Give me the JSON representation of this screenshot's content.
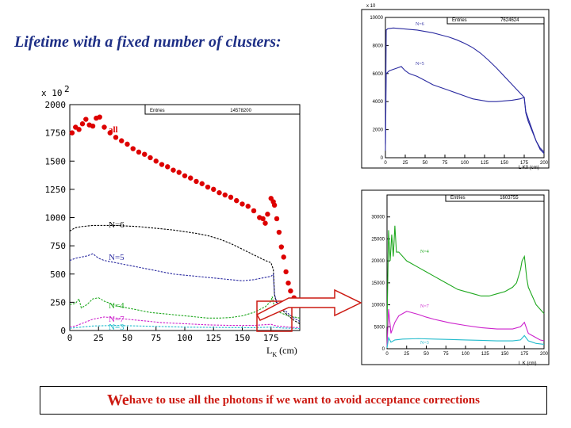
{
  "slide": {
    "title": "Lifetime with a fixed number of clusters:",
    "footer_first_word": "We",
    "footer_rest": " have to use all the photons if we want to avoid acceptance corrections",
    "title_color": "#1e2f86",
    "footer_color": "#cc1a12",
    "arrow_color": "#cc1a12"
  },
  "chart_data": [
    {
      "type": "line",
      "xlabel": "L_K (cm)",
      "xlabel_main": "L",
      "xlabel_sub": "K",
      "xlabel_unit": " (cm)",
      "ylabel": "",
      "y_multiplier": "x 10",
      "y_multiplier_exp": "2",
      "stats_label": "Entries",
      "stats_value": "14578200",
      "xlim": [
        0,
        200
      ],
      "ylim": [
        0,
        2000
      ],
      "xticks": [
        0,
        25,
        50,
        75,
        100,
        125,
        150,
        175
      ],
      "yticks": [
        0,
        250,
        500,
        750,
        1000,
        1250,
        1500,
        1750,
        2000
      ],
      "series": [
        {
          "name": "all",
          "color": "#dd0000",
          "marker": "dot",
          "x": [
            2,
            5,
            8,
            11,
            14,
            17,
            20,
            23,
            26,
            30,
            35,
            40,
            45,
            50,
            55,
            60,
            65,
            70,
            75,
            80,
            85,
            90,
            95,
            100,
            105,
            110,
            115,
            120,
            125,
            130,
            135,
            140,
            145,
            150,
            155,
            160,
            165,
            168,
            170,
            172,
            175,
            177,
            178,
            180,
            182,
            184,
            186,
            188,
            190,
            192,
            195,
            198
          ],
          "values": [
            1750,
            1800,
            1780,
            1830,
            1870,
            1820,
            1810,
            1880,
            1890,
            1800,
            1750,
            1710,
            1680,
            1650,
            1610,
            1580,
            1560,
            1530,
            1500,
            1470,
            1450,
            1420,
            1400,
            1370,
            1350,
            1320,
            1300,
            1270,
            1250,
            1220,
            1200,
            1180,
            1150,
            1120,
            1100,
            1060,
            1000,
            990,
            950,
            1030,
            1170,
            1140,
            1110,
            990,
            870,
            740,
            650,
            520,
            420,
            350,
            290,
            240
          ]
        },
        {
          "name": "N=6",
          "color": "#000000",
          "x": [
            0,
            3,
            5,
            10,
            20,
            30,
            40,
            50,
            60,
            70,
            80,
            90,
            100,
            110,
            120,
            130,
            140,
            150,
            160,
            170,
            175,
            177,
            178,
            180,
            185,
            190,
            195,
            200
          ],
          "values": [
            880,
            900,
            910,
            920,
            930,
            930,
            930,
            925,
            920,
            910,
            900,
            890,
            875,
            860,
            840,
            810,
            770,
            720,
            670,
            620,
            600,
            540,
            320,
            230,
            180,
            130,
            90,
            60
          ]
        },
        {
          "name": "N=5",
          "color": "#2a2aa0",
          "x": [
            0,
            5,
            10,
            15,
            20,
            25,
            30,
            40,
            50,
            60,
            70,
            80,
            90,
            100,
            110,
            120,
            130,
            140,
            150,
            160,
            170,
            175,
            177,
            178,
            180,
            185,
            190,
            195,
            200
          ],
          "values": [
            620,
            640,
            650,
            660,
            680,
            640,
            620,
            600,
            580,
            560,
            540,
            520,
            500,
            490,
            480,
            470,
            460,
            450,
            440,
            450,
            470,
            480,
            500,
            320,
            250,
            200,
            150,
            110,
            80
          ]
        },
        {
          "name": "N=4",
          "color": "#1fa81f",
          "x": [
            0,
            5,
            8,
            10,
            15,
            20,
            25,
            30,
            40,
            50,
            60,
            70,
            80,
            90,
            100,
            110,
            120,
            130,
            140,
            150,
            160,
            170,
            175,
            176,
            178,
            180,
            185,
            190,
            200
          ],
          "values": [
            230,
            240,
            280,
            200,
            230,
            280,
            290,
            260,
            220,
            200,
            180,
            160,
            150,
            140,
            130,
            120,
            110,
            110,
            115,
            130,
            160,
            210,
            260,
            300,
            200,
            170,
            150,
            130,
            110
          ]
        },
        {
          "name": "N=7",
          "color": "#cc22cc",
          "x": [
            0,
            5,
            10,
            20,
            30,
            40,
            50,
            60,
            70,
            80,
            100,
            120,
            140,
            160,
            175,
            180,
            190,
            200
          ],
          "values": [
            30,
            40,
            60,
            100,
            120,
            110,
            100,
            90,
            80,
            70,
            60,
            50,
            45,
            45,
            55,
            40,
            30,
            25
          ]
        },
        {
          "name": "N=3",
          "color": "#22bbcc",
          "x": [
            0,
            10,
            20,
            40,
            60,
            80,
            100,
            120,
            140,
            160,
            175,
            185,
            200
          ],
          "values": [
            20,
            30,
            40,
            45,
            40,
            35,
            30,
            28,
            26,
            25,
            30,
            22,
            18
          ]
        }
      ]
    },
    {
      "type": "line",
      "y_multiplier": "x 10",
      "stats_label": "Entries",
      "stats_value": "7624624",
      "xlabel": "L K0 (cm)",
      "xlim": [
        0,
        200
      ],
      "ylim": [
        0,
        10000
      ],
      "xticks": [
        0,
        25,
        50,
        75,
        100,
        125,
        150,
        175,
        200
      ],
      "yticks": [
        0,
        2000,
        4000,
        6000,
        8000,
        10000
      ],
      "series": [
        {
          "name": "N=6",
          "color": "#2a2aa0",
          "x": [
            0,
            1,
            3,
            10,
            20,
            30,
            40,
            50,
            60,
            70,
            80,
            90,
            100,
            110,
            120,
            130,
            140,
            150,
            160,
            170,
            175,
            177,
            180,
            185,
            190,
            195,
            200
          ],
          "values": [
            1000,
            9100,
            9200,
            9250,
            9200,
            9150,
            9100,
            9000,
            8900,
            8750,
            8600,
            8400,
            8150,
            7850,
            7450,
            6950,
            6400,
            5800,
            5200,
            4600,
            4300,
            3300,
            2800,
            2000,
            1200,
            600,
            300
          ]
        },
        {
          "name": "N=5",
          "color": "#2a2aa0",
          "x": [
            0,
            1,
            5,
            10,
            15,
            20,
            25,
            30,
            40,
            50,
            60,
            70,
            80,
            90,
            100,
            110,
            120,
            130,
            140,
            150,
            160,
            170,
            175,
            177,
            180,
            185,
            190,
            195,
            200
          ],
          "values": [
            500,
            6000,
            6200,
            6300,
            6400,
            6500,
            6200,
            6000,
            5800,
            5500,
            5200,
            5000,
            4800,
            4600,
            4400,
            4200,
            4100,
            4000,
            4000,
            4050,
            4100,
            4200,
            4300,
            3200,
            2600,
            1900,
            1200,
            700,
            400
          ]
        }
      ]
    },
    {
      "type": "line",
      "stats_label": "Entries",
      "stats_value": "1603755",
      "xlabel": "L K (cm)",
      "xlim": [
        0,
        200
      ],
      "ylim": [
        0,
        35000
      ],
      "xticks": [
        0,
        25,
        50,
        75,
        100,
        125,
        150,
        175,
        200
      ],
      "yticks": [
        0,
        5000,
        10000,
        15000,
        20000,
        25000,
        30000
      ],
      "series": [
        {
          "name": "N=4",
          "color": "#1fa81f",
          "x": [
            0,
            2,
            4,
            6,
            8,
            10,
            12,
            15,
            20,
            25,
            30,
            40,
            50,
            60,
            70,
            80,
            90,
            100,
            110,
            120,
            130,
            140,
            150,
            160,
            165,
            170,
            172,
            175,
            178,
            180,
            185,
            190,
            195,
            200
          ],
          "values": [
            5000,
            27000,
            20000,
            26000,
            21000,
            28000,
            22000,
            22000,
            21000,
            20000,
            19500,
            18500,
            17500,
            16500,
            15500,
            14500,
            13500,
            13000,
            12500,
            12000,
            12000,
            12500,
            13000,
            14000,
            15000,
            18000,
            20000,
            21000,
            16000,
            14000,
            12000,
            10000,
            9000,
            8000
          ]
        },
        {
          "name": "N=7",
          "color": "#cc22cc",
          "x": [
            0,
            2,
            5,
            10,
            15,
            20,
            25,
            30,
            40,
            50,
            60,
            70,
            80,
            100,
            120,
            140,
            160,
            170,
            175,
            178,
            180,
            185,
            190,
            195,
            200
          ],
          "values": [
            500,
            9000,
            3500,
            6000,
            7500,
            8000,
            8500,
            8300,
            7800,
            7200,
            6700,
            6300,
            5900,
            5300,
            4800,
            4500,
            4500,
            5000,
            6000,
            4500,
            3500,
            3000,
            2500,
            2000,
            1800
          ]
        },
        {
          "name": "N=3",
          "color": "#22bbcc",
          "x": [
            0,
            2,
            5,
            10,
            20,
            40,
            60,
            80,
            100,
            120,
            140,
            160,
            170,
            175,
            180,
            185,
            190,
            200
          ],
          "values": [
            200,
            2500,
            1500,
            2000,
            2200,
            2300,
            2200,
            2100,
            2000,
            1900,
            1800,
            1800,
            2000,
            3000,
            1800,
            1500,
            1200,
            1000
          ]
        }
      ]
    }
  ]
}
